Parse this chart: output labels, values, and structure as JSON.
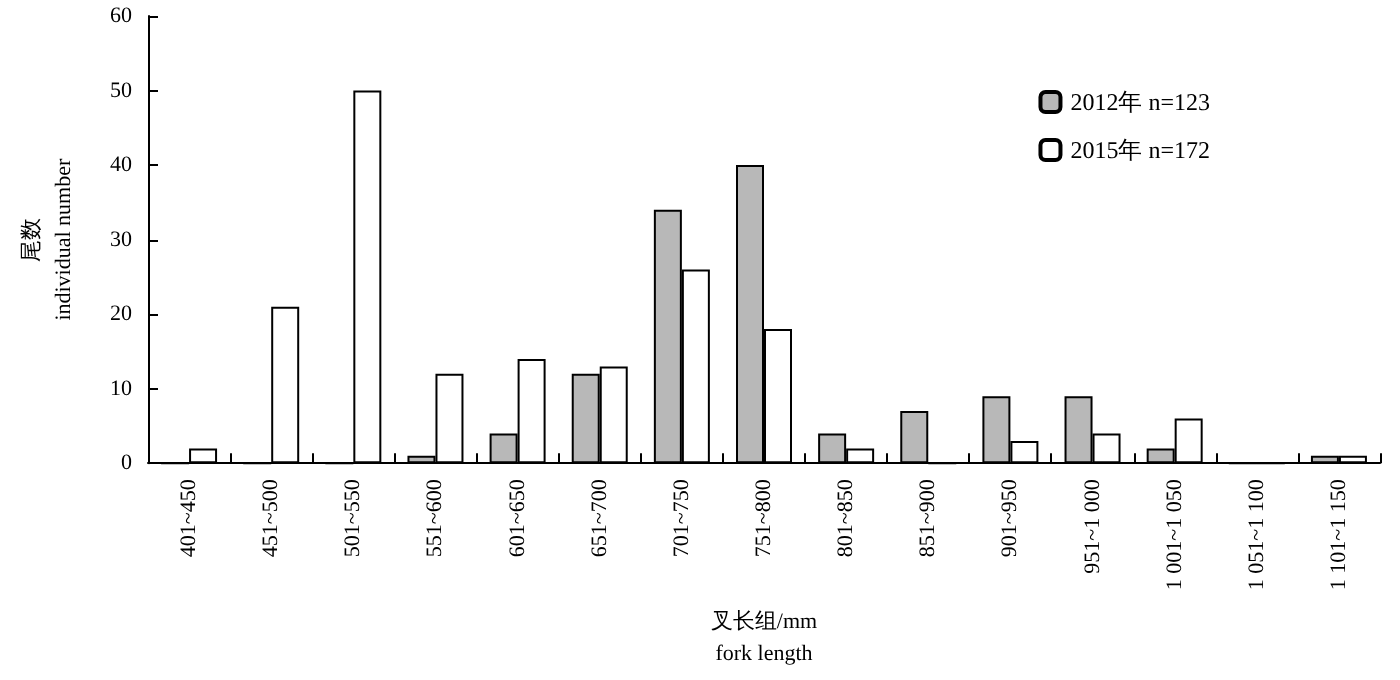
{
  "chart_data": {
    "type": "bar",
    "xlabel": "叉长组/mm\nfork length",
    "ylabel": "尾数\nindividual number",
    "categories": [
      "401~450",
      "451~500",
      "501~550",
      "551~600",
      "601~650",
      "651~700",
      "701~750",
      "751~800",
      "801~850",
      "851~900",
      "901~950",
      "951~1 000",
      "1 001~1 050",
      "1 051~1 100",
      "1 101~1 150"
    ],
    "series": [
      {
        "name": "2012年 n=123",
        "color": "#b8b8b8",
        "values": [
          0,
          0,
          0,
          1,
          4,
          12,
          34,
          40,
          4,
          7,
          9,
          9,
          2,
          0,
          1
        ]
      },
      {
        "name": "2015年 n=172",
        "color": "#ffffff",
        "values": [
          2,
          21,
          50,
          12,
          14,
          13,
          26,
          18,
          2,
          0,
          3,
          4,
          6,
          0,
          1
        ]
      }
    ],
    "ylim": [
      0,
      60
    ],
    "yticks": [
      0,
      10,
      20,
      30,
      40,
      50,
      60
    ],
    "grid": false,
    "legend": "top right"
  }
}
